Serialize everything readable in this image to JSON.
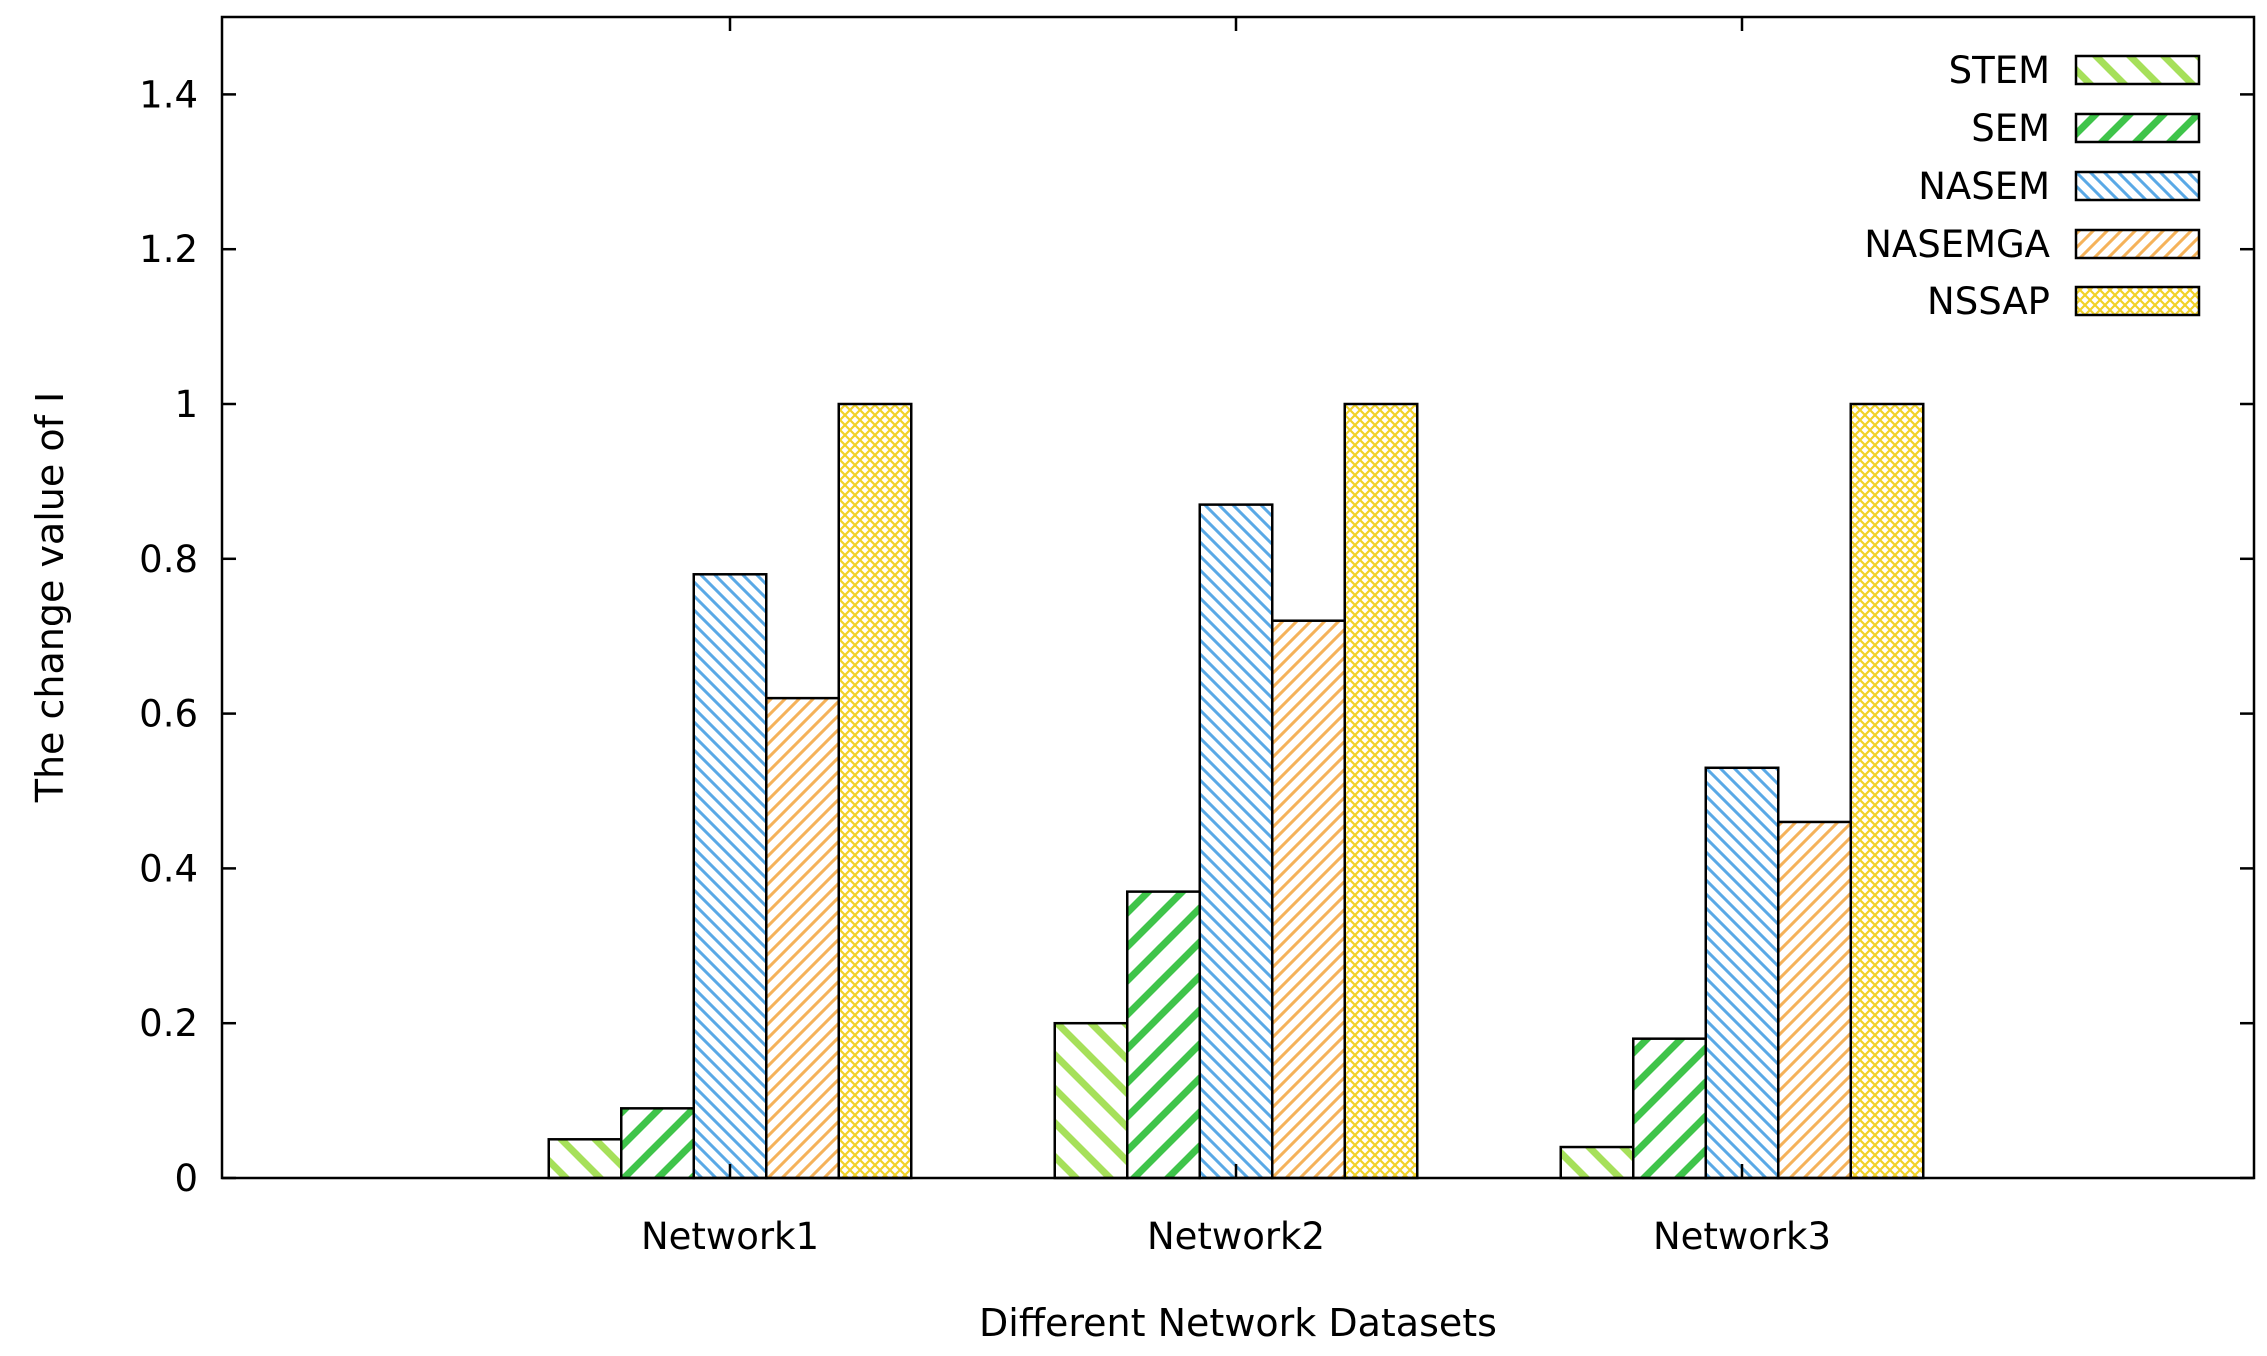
{
  "chart_data": {
    "type": "bar",
    "title": "",
    "xlabel": "Different Network Datasets",
    "ylabel": "The change value of I",
    "categories": [
      "Network1",
      "Network2",
      "Network3"
    ],
    "ylim": [
      0,
      1.5
    ],
    "yticks": [
      0,
      0.2,
      0.4,
      0.6,
      0.8,
      1,
      1.2,
      1.4
    ],
    "ytick_labels": [
      "0",
      "0.2",
      "0.4",
      "0.6",
      "0.8",
      "1",
      "1.2",
      "1.4"
    ],
    "grid": false,
    "legend_position": "top-right",
    "series": [
      {
        "name": "STEM",
        "values": [
          0.05,
          0.2,
          0.04
        ],
        "color": "#a6e05a",
        "pattern": "wide-diagonal-down"
      },
      {
        "name": "SEM",
        "values": [
          0.09,
          0.37,
          0.18
        ],
        "color": "#3fc44a",
        "pattern": "wide-diagonal-up"
      },
      {
        "name": "NASEM",
        "values": [
          0.78,
          0.87,
          0.53
        ],
        "color": "#5aa9e6",
        "pattern": "dense-diagonal-down"
      },
      {
        "name": "NASEMGA",
        "values": [
          0.62,
          0.72,
          0.46
        ],
        "color": "#f5b25a",
        "pattern": "dense-diagonal-up"
      },
      {
        "name": "NSSAP",
        "values": [
          1.0,
          1.0,
          1.0
        ],
        "color": "#f2d228",
        "pattern": "crosshatch"
      }
    ]
  }
}
